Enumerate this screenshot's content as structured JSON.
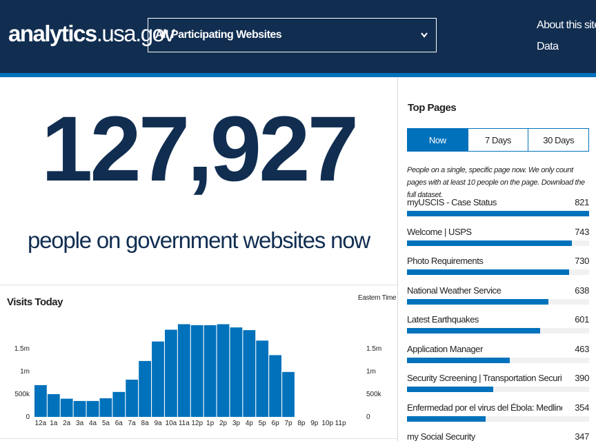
{
  "header": {
    "logo_bold": "analytics",
    "logo_rest": ".usa.gov",
    "site_select": "All Participating Websites",
    "nav": [
      "About this site",
      "Data"
    ]
  },
  "hero": {
    "count": "127,927",
    "caption": "people on government websites now"
  },
  "visits": {
    "title": "Visits Today",
    "timezone": "Eastern Time"
  },
  "chart_data": {
    "type": "bar",
    "title": "Visits Today",
    "categories": [
      "12a",
      "1a",
      "2a",
      "3a",
      "4a",
      "5a",
      "6a",
      "7a",
      "8a",
      "9a",
      "10a",
      "11a",
      "12p",
      "1p",
      "2p",
      "3p",
      "4p",
      "5p",
      "6p",
      "7p",
      "8p",
      "9p",
      "10p",
      "11p"
    ],
    "values": [
      700000,
      500000,
      400000,
      350000,
      350000,
      410000,
      550000,
      820000,
      1230000,
      1660000,
      1920000,
      2040000,
      2020000,
      2020000,
      2040000,
      1970000,
      1910000,
      1680000,
      1360000,
      990000,
      0,
      0,
      0,
      0
    ],
    "ytick_labels": [
      "0",
      "500k",
      "1m",
      "1.5m"
    ],
    "ytick_values": [
      0,
      500000,
      1000000,
      1500000
    ],
    "ylim": [
      0,
      2200000
    ],
    "color": "#0071bb",
    "grid": false
  },
  "top_pages": {
    "title": "Top Pages",
    "tabs": [
      "Now",
      "7 Days",
      "30 Days"
    ],
    "active_tab": 0,
    "description": "People on a single, specific page now. We only count pages with at least 10 people on the page. Download the full dataset.",
    "items": [
      {
        "label": "myUSCIS - Case Status",
        "count": "821",
        "value": 821
      },
      {
        "label": "Welcome | USPS",
        "count": "743",
        "value": 743
      },
      {
        "label": "Photo Requirements",
        "count": "730",
        "value": 730
      },
      {
        "label": "National Weather Service",
        "count": "638",
        "value": 638
      },
      {
        "label": "Latest Earthquakes",
        "count": "601",
        "value": 601
      },
      {
        "label": "Application Manager",
        "count": "463",
        "value": 463
      },
      {
        "label": "Security Screening | Transportation Security ...",
        "count": "390",
        "value": 390
      },
      {
        "label": "Enfermedad por el virus del Ébola: MedlinePl...",
        "count": "354",
        "value": 354
      },
      {
        "label": "my Social Security",
        "count": "347",
        "value": 347
      }
    ],
    "bar_max": 821,
    "bar_color": "#0071bb"
  }
}
